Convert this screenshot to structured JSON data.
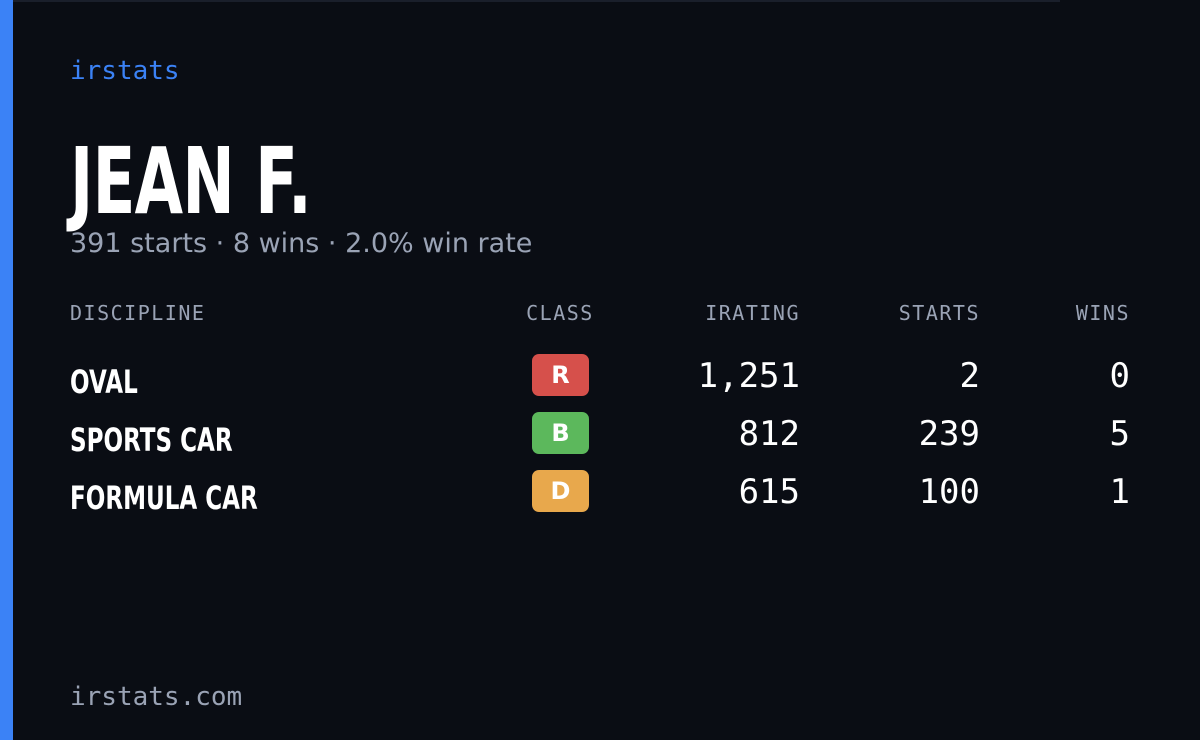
{
  "brand": "irstats",
  "header": {
    "name": "JEAN F.",
    "subtitle": "391 starts · 8 wins · 2.0% win rate"
  },
  "table": {
    "columns": [
      "DISCIPLINE",
      "CLASS",
      "IRATING",
      "STARTS",
      "WINS"
    ],
    "rows": [
      [
        "OVAL",
        "R",
        "1,251",
        "2",
        "0"
      ],
      [
        "SPORTS CAR",
        "B",
        "812",
        "239",
        "5"
      ],
      [
        "FORMULA CAR",
        "D",
        "615",
        "100",
        "1"
      ]
    ]
  },
  "footer": "irstats.com"
}
